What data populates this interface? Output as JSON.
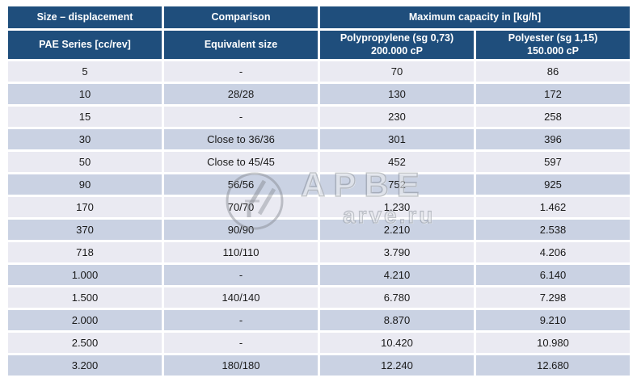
{
  "table": {
    "header_row1": [
      {
        "label": "Size – displacement"
      },
      {
        "label": "Comparison"
      },
      {
        "label": "Maximum capacity in [kg/h]"
      }
    ],
    "header_row2": [
      {
        "line1": "PAE Series [cc/rev]",
        "line2": ""
      },
      {
        "line1": "Equivalent size",
        "line2": ""
      },
      {
        "line1": "Polypropylene (sg 0,73)",
        "line2": "200.000 cP"
      },
      {
        "line1": "Polyester (sg 1,15)",
        "line2": "150.000 cP"
      }
    ],
    "rows": [
      [
        "5",
        "-",
        "70",
        "86"
      ],
      [
        "10",
        "28/28",
        "130",
        "172"
      ],
      [
        "15",
        "-",
        "230",
        "258"
      ],
      [
        "30",
        "Close to 36/36",
        "301",
        "396"
      ],
      [
        "50",
        "Close to 45/45",
        "452",
        "597"
      ],
      [
        "90",
        "56/56",
        "752",
        "925"
      ],
      [
        "170",
        "70/70",
        "1.230",
        "1.462"
      ],
      [
        "370",
        "90/90",
        "2.210",
        "2.538"
      ],
      [
        "718",
        "110/110",
        "3.790",
        "4.206"
      ],
      [
        "1.000",
        "-",
        "4.210",
        "6.140"
      ],
      [
        "1.500",
        "140/140",
        "6.780",
        "7.298"
      ],
      [
        "2.000",
        "-",
        "8.870",
        "9.210"
      ],
      [
        "2.500",
        "-",
        "10.420",
        "10.980"
      ],
      [
        "3.200",
        "180/180",
        "12.240",
        "12.680"
      ]
    ],
    "colors": {
      "header_bg": "#1F4E7C",
      "header_text": "#FFFFFF",
      "row_light": "#EAEAF2",
      "row_dark": "#CAD2E3",
      "cell_text": "#1A1A1A"
    }
  },
  "watermark": {
    "brand_text": "АРВЕ",
    "domain_text": "arve.ru",
    "logo": "arve-circle-logo"
  }
}
